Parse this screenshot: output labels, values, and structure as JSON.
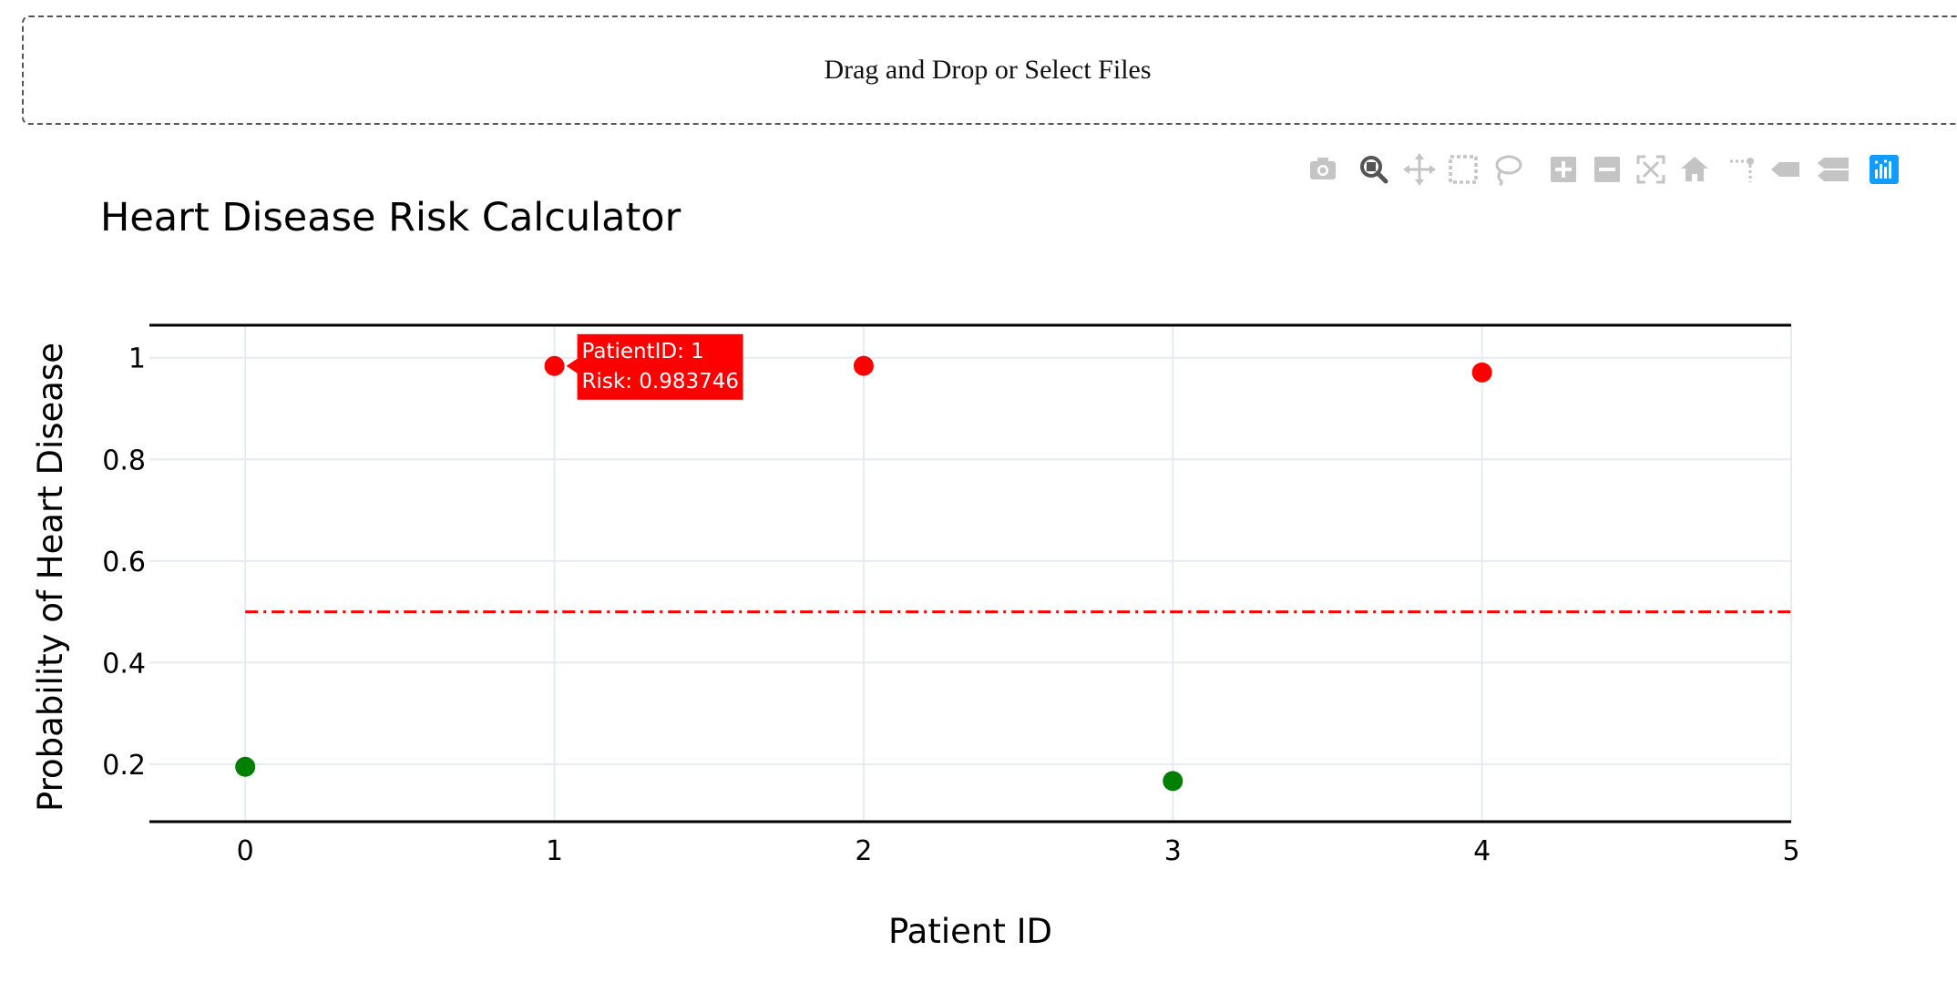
{
  "upload": {
    "label": "Drag and Drop or Select Files"
  },
  "modebar": {
    "buttons": [
      {
        "name": "camera-icon",
        "active": false
      },
      {
        "name": "zoom-icon",
        "active": true
      },
      {
        "name": "pan-icon",
        "active": false
      },
      {
        "name": "box-select-icon",
        "active": false
      },
      {
        "name": "lasso-select-icon",
        "active": false
      },
      {
        "name": "zoom-in-icon",
        "active": false
      },
      {
        "name": "zoom-out-icon",
        "active": false
      },
      {
        "name": "autoscale-icon",
        "active": false
      },
      {
        "name": "reset-axes-icon",
        "active": false
      },
      {
        "name": "spike-lines-icon",
        "active": false
      },
      {
        "name": "hover-closest-icon",
        "active": false
      },
      {
        "name": "hover-compare-icon",
        "active": false
      },
      {
        "name": "plotly-logo-icon",
        "active": false
      }
    ],
    "colors": {
      "idle": "#c4c4c4",
      "active": "#555555",
      "logo": "#119dff"
    }
  },
  "chart_data": {
    "type": "scatter",
    "title": "Heart Disease Risk Calculator",
    "xlabel": "Patient ID",
    "ylabel": "Probability of Heart Disease",
    "xlim": [
      -0.31,
      5.0
    ],
    "ylim": [
      0.087,
      1.064
    ],
    "xticks": [
      0,
      1,
      2,
      3,
      4,
      5
    ],
    "yticks": [
      0.2,
      0.4,
      0.6,
      0.8,
      1
    ],
    "ytick_labels": [
      "0.2",
      "0.4",
      "0.6",
      "0.8",
      "1"
    ],
    "grid": true,
    "points": [
      {
        "x": 0,
        "y": 0.195,
        "color": "#008000"
      },
      {
        "x": 1,
        "y": 0.983746,
        "color": "#ff0000"
      },
      {
        "x": 2,
        "y": 0.984,
        "color": "#ff0000"
      },
      {
        "x": 3,
        "y": 0.167,
        "color": "#008000"
      },
      {
        "x": 4,
        "y": 0.971,
        "color": "#ff0000"
      }
    ],
    "threshold": {
      "y": 0.5,
      "x_start": 0,
      "x_end": 5.0,
      "color": "#ff0000",
      "style": "dashdot"
    },
    "tooltip": {
      "point_index": 1,
      "lines": [
        "PatientID: 1",
        "Risk: 0.983746"
      ],
      "bg": "#ff0000",
      "fg": "#ffffff"
    },
    "colors": {
      "high_risk": "#ff0000",
      "low_risk": "#008000",
      "grid": "#e6ebf1",
      "axis": "#000000"
    }
  }
}
